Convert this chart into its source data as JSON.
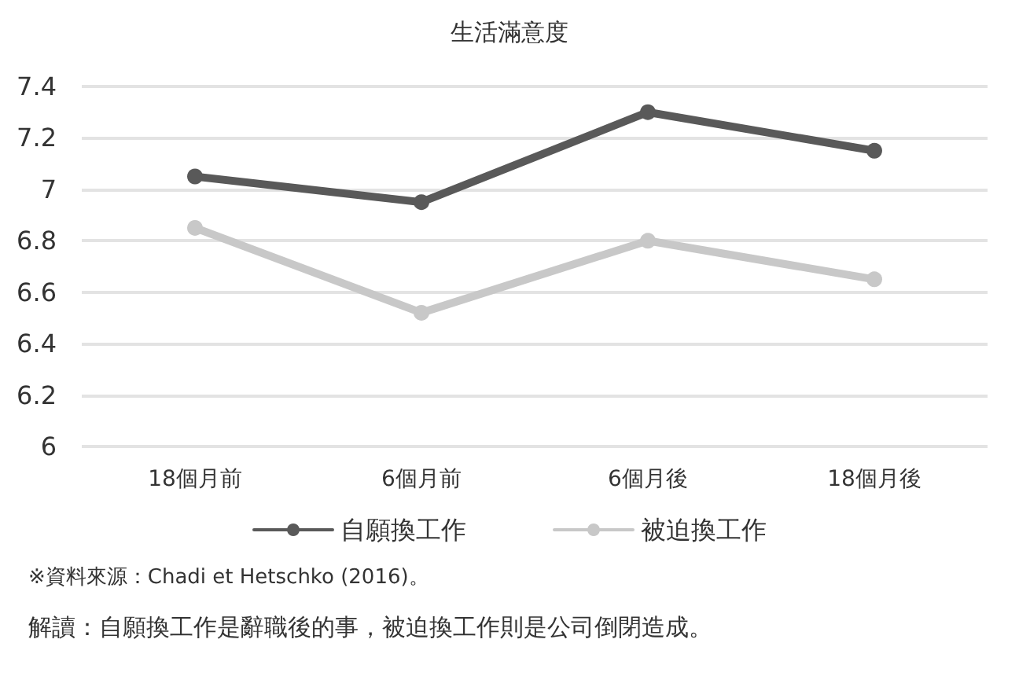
{
  "chart_data": {
    "type": "line",
    "title": "生活滿意度",
    "categories": [
      "18個月前",
      "6個月前",
      "6個月後",
      "18個月後"
    ],
    "series": [
      {
        "name": "自願換工作",
        "color": "#595959",
        "values": [
          7.05,
          6.95,
          7.3,
          7.15
        ]
      },
      {
        "name": "被迫換工作",
        "color": "#c8c8c8",
        "values": [
          6.85,
          6.52,
          6.8,
          6.65
        ]
      }
    ],
    "ylim": [
      6,
      7.4
    ],
    "yticks": [
      6,
      6.2,
      6.4,
      6.6,
      6.8,
      7,
      7.2,
      7.4
    ],
    "grid": "y",
    "legend": "bottom",
    "marker": "circle",
    "line_style": "solid",
    "annotations": [
      "※資料來源：Chadi et Hetschko (2016)。",
      "解讀：自願換工作是辭職後的事，被迫換工作則是公司倒閉造成。"
    ]
  }
}
